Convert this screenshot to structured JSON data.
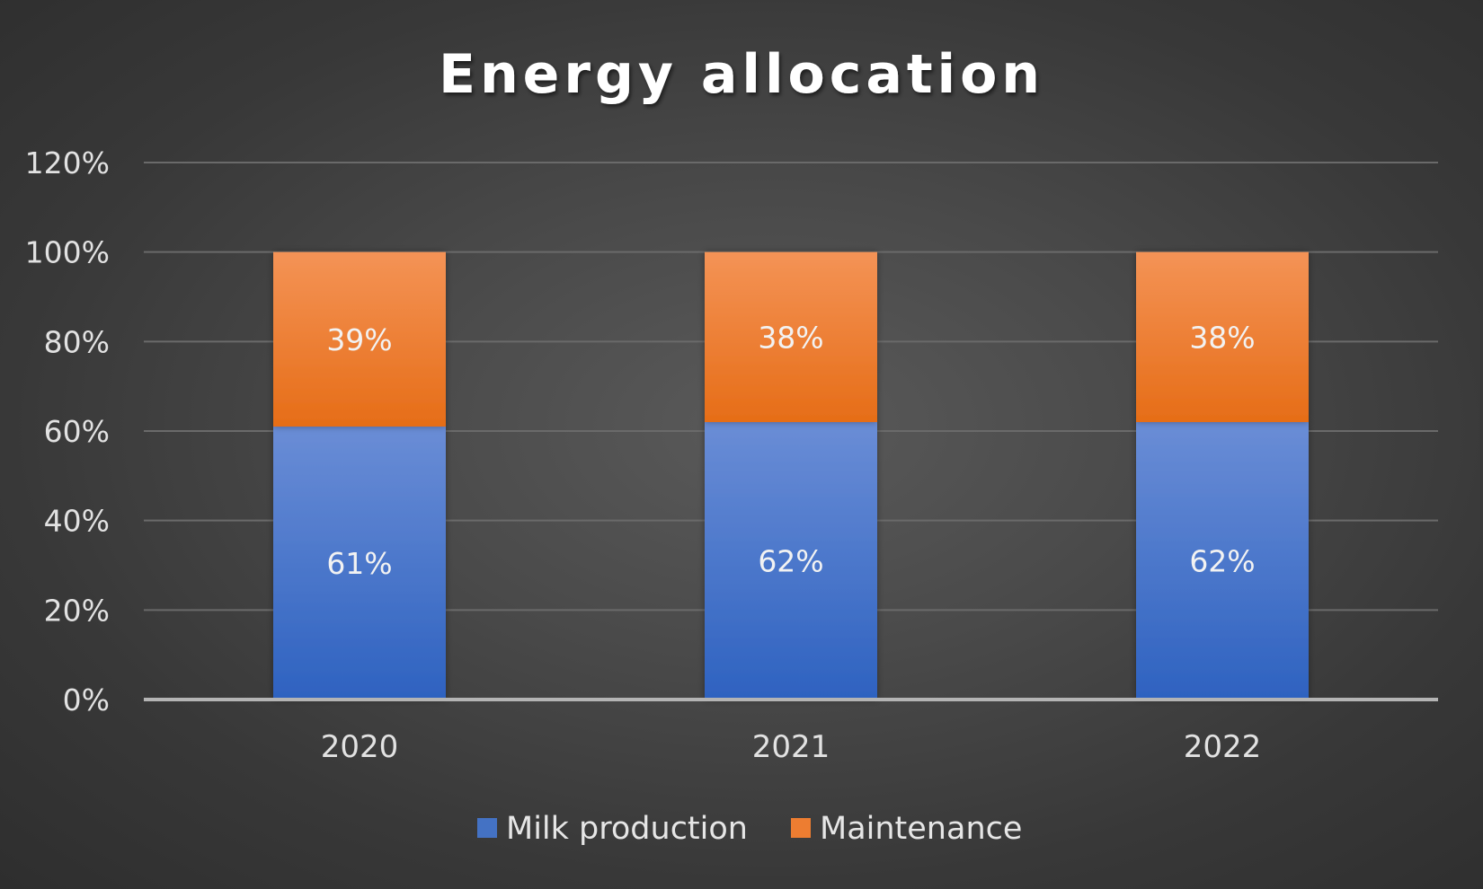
{
  "chart_data": {
    "type": "bar",
    "stacked": true,
    "title": "Energy allocation",
    "categories": [
      "2020",
      "2021",
      "2022"
    ],
    "series": [
      {
        "name": "Milk production",
        "values": [
          61,
          62,
          62
        ],
        "labels": [
          "61%",
          "62%",
          "62%"
        ],
        "color": "#4472c4"
      },
      {
        "name": "Maintenance",
        "values": [
          39,
          38,
          38
        ],
        "labels": [
          "39%",
          "38%",
          "38%"
        ],
        "color": "#ed7d31"
      }
    ],
    "ylim": [
      0,
      120
    ],
    "yticks": [
      {
        "value": 0,
        "label": "0%"
      },
      {
        "value": 20,
        "label": "20%"
      },
      {
        "value": 40,
        "label": "40%"
      },
      {
        "value": 60,
        "label": "60%"
      },
      {
        "value": 80,
        "label": "80%"
      },
      {
        "value": 100,
        "label": "100%"
      },
      {
        "value": 120,
        "label": "120%"
      }
    ],
    "grid": true,
    "legend_position": "bottom"
  }
}
